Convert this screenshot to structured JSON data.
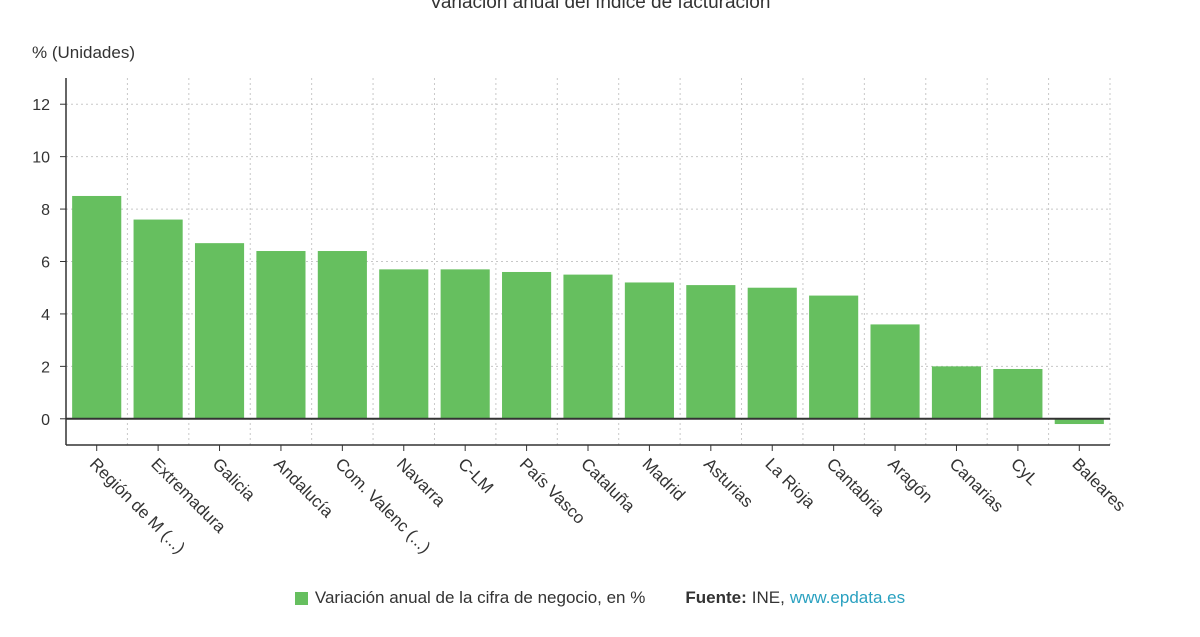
{
  "chart_data": {
    "type": "bar",
    "title": "Variación anual del índice de facturación",
    "ylabel": "% (Unidades)",
    "xlabel": "",
    "categories": [
      "Región de M (...)",
      "Extremadura",
      "Galicia",
      "Andalucía",
      "Com. Valenc (...)",
      "Navarra",
      "C-LM",
      "País Vasco",
      "Cataluña",
      "Madrid",
      "Asturias",
      "La Rioja",
      "Cantabria",
      "Aragón",
      "Canarias",
      "CyL",
      "Baleares"
    ],
    "series": [
      {
        "name": "Variación anual de la cifra de negocio, en %",
        "values": [
          8.5,
          7.6,
          6.7,
          6.4,
          6.4,
          5.7,
          5.7,
          5.6,
          5.5,
          5.2,
          5.1,
          5.0,
          4.7,
          3.6,
          2.0,
          1.9,
          -0.2
        ],
        "color": "#66bf5f"
      }
    ],
    "ylim": [
      -1,
      13
    ],
    "yticks": [
      0,
      2,
      4,
      6,
      8,
      10,
      12
    ],
    "grid": true,
    "legend_position": "bottom"
  },
  "source": {
    "label": "Fuente:",
    "text": "INE,",
    "link": "www.epdata.es"
  }
}
